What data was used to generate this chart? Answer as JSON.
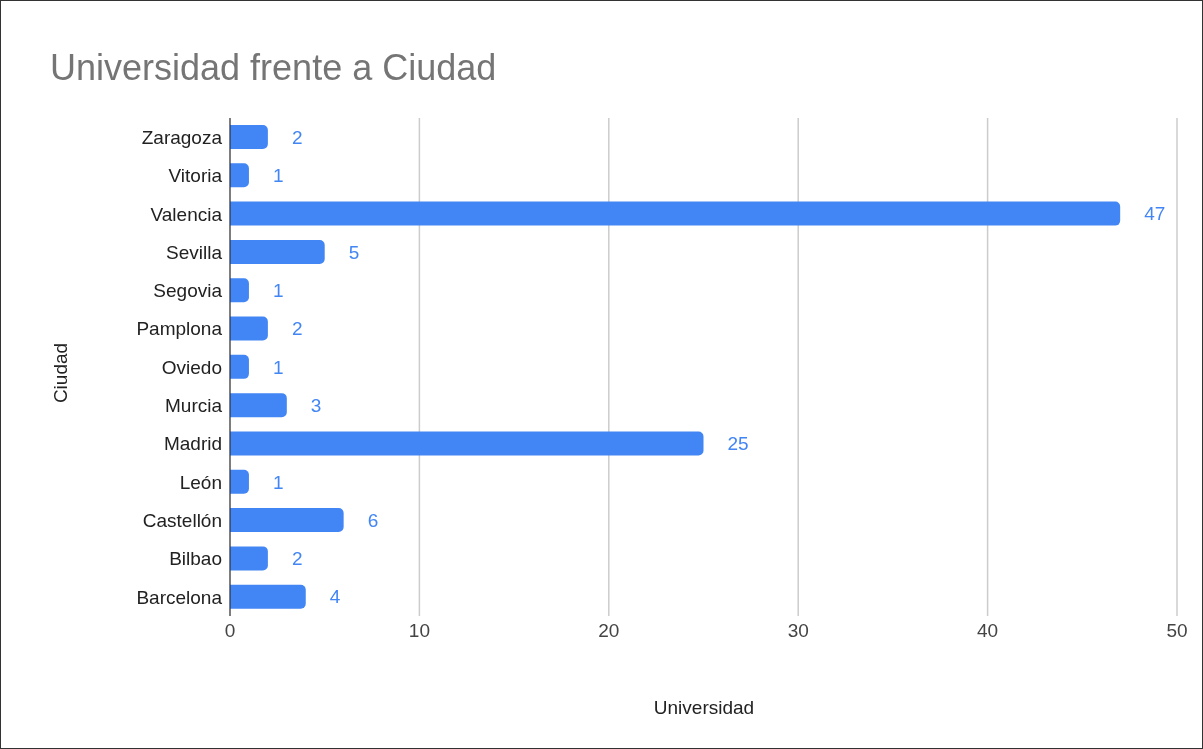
{
  "chart_data": {
    "type": "bar",
    "orientation": "horizontal",
    "title": "Universidad frente a Ciudad",
    "xlabel": "Universidad",
    "ylabel": "Ciudad",
    "categories": [
      "Zaragoza",
      "Vitoria",
      "Valencia",
      "Sevilla",
      "Segovia",
      "Pamplona",
      "Oviedo",
      "Murcia",
      "Madrid",
      "León",
      "Castellón",
      "Bilbao",
      "Barcelona"
    ],
    "values": [
      2,
      1,
      47,
      5,
      1,
      2,
      1,
      3,
      25,
      1,
      6,
      2,
      4
    ],
    "color": "#4285f4",
    "xlim": [
      0,
      50
    ],
    "xticks": [
      0,
      10,
      20,
      30,
      40,
      50
    ],
    "grid": "x",
    "data_labels": true,
    "legend": false
  }
}
